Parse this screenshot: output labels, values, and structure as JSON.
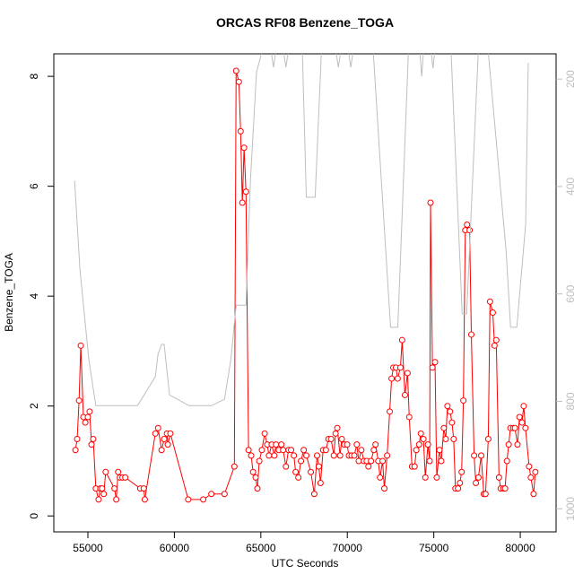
{
  "chart_data": {
    "type": "line",
    "title": "ORCAS RF08 Benzene_TOGA",
    "x_label": "UTC Seconds",
    "y_label": "Benzene_TOGA",
    "xlim": [
      53030,
      82070
    ],
    "xticks": [
      55000,
      60000,
      65000,
      70000,
      75000,
      80000
    ],
    "ylim": [
      -0.29,
      8.41
    ],
    "yticks": [
      0,
      2,
      4,
      6,
      8
    ],
    "y2lim": [
      1043,
      153
    ],
    "y2ticks": [
      200,
      400,
      600,
      800,
      1000
    ],
    "y2_color": "#bebebe",
    "series": [
      {
        "color": "#ff0000",
        "markers": true,
        "x": [
          54280,
          54380,
          54490,
          54590,
          54740,
          54850,
          55000,
          55100,
          55210,
          55310,
          55460,
          55620,
          55720,
          55820,
          55920,
          56030,
          56540,
          56640,
          56750,
          56850,
          57000,
          57160,
          58030,
          58230,
          58290,
          58900,
          59060,
          59260,
          59410,
          59570,
          59620,
          59770,
          60800,
          61670,
          62140,
          62900,
          63470,
          63570,
          63730,
          63830,
          63930,
          64030,
          64140,
          64290,
          64440,
          64550,
          64700,
          64800,
          64910,
          65060,
          65220,
          65370,
          65470,
          65630,
          65780,
          65880,
          66040,
          66190,
          66290,
          66450,
          66600,
          66750,
          66910,
          67010,
          67170,
          67320,
          67480,
          67630,
          67890,
          68090,
          68250,
          68350,
          68450,
          68600,
          68760,
          68910,
          69060,
          69220,
          69320,
          69420,
          69580,
          69680,
          69830,
          69990,
          70090,
          70250,
          70400,
          70550,
          70660,
          70810,
          70960,
          71120,
          71220,
          71370,
          71530,
          71630,
          71790,
          71890,
          72040,
          72140,
          72300,
          72450,
          72560,
          72660,
          72810,
          72910,
          73070,
          73170,
          73330,
          73480,
          73580,
          73740,
          73890,
          73990,
          74150,
          74250,
          74400,
          74510,
          74660,
          74760,
          74810,
          74920,
          75070,
          75170,
          75330,
          75430,
          75580,
          75690,
          75790,
          75940,
          76050,
          76150,
          76250,
          76400,
          76510,
          76610,
          76710,
          76820,
          76920,
          77070,
          77170,
          77330,
          77430,
          77580,
          77740,
          77890,
          77990,
          78150,
          78250,
          78410,
          78510,
          78610,
          78770,
          78870,
          79020,
          79120,
          79230,
          79330,
          79430,
          79590,
          79690,
          79840,
          79950,
          80100,
          80200,
          80300,
          80510,
          80610,
          80770,
          80870
        ],
        "values": [
          1.2,
          1.4,
          2.1,
          3.1,
          1.8,
          1.7,
          1.8,
          1.9,
          1.3,
          1.4,
          0.5,
          0.3,
          0.5,
          0.5,
          0.4,
          0.8,
          0.5,
          0.3,
          0.8,
          0.7,
          0.7,
          0.7,
          0.5,
          0.5,
          0.3,
          1.5,
          1.6,
          1.2,
          1.4,
          1.5,
          1.3,
          1.5,
          0.3,
          0.3,
          0.4,
          0.4,
          0.9,
          8.1,
          7.9,
          7.0,
          5.7,
          6.7,
          5.9,
          1.2,
          1.1,
          0.8,
          0.7,
          0.5,
          1.0,
          1.2,
          1.5,
          1.3,
          1.1,
          1.3,
          1.1,
          1.3,
          1.2,
          1.3,
          1.2,
          0.9,
          1.2,
          1.2,
          1.1,
          0.8,
          0.7,
          1.0,
          1.2,
          1.1,
          0.8,
          0.4,
          1.1,
          0.9,
          0.6,
          1.2,
          1.2,
          1.4,
          1.4,
          1.1,
          1.5,
          1.6,
          1.1,
          1.4,
          1.3,
          1.3,
          1.1,
          1.1,
          1.1,
          1.3,
          1.0,
          1.2,
          1.0,
          1.0,
          0.9,
          1.0,
          1.2,
          1.3,
          1.0,
          0.7,
          1.0,
          0.5,
          1.1,
          1.9,
          2.5,
          2.7,
          2.7,
          2.5,
          2.7,
          3.2,
          2.2,
          2.6,
          1.8,
          0.9,
          0.9,
          1.2,
          1.3,
          1.5,
          1.4,
          0.7,
          1.3,
          1.0,
          5.7,
          2.7,
          2.8,
          0.7,
          1.2,
          1.0,
          1.6,
          1.4,
          2.0,
          1.9,
          1.7,
          1.4,
          0.5,
          0.5,
          0.6,
          0.8,
          2.1,
          5.2,
          5.3,
          5.2,
          3.3,
          1.1,
          0.6,
          0.7,
          1.1,
          0.4,
          0.4,
          1.4,
          3.9,
          3.7,
          3.1,
          3.2,
          0.7,
          0.5,
          0.5,
          0.5,
          1.0,
          1.3,
          1.6,
          1.6,
          1.6,
          1.3,
          1.8,
          1.7,
          2.0,
          1.6,
          0.9,
          0.7,
          0.4,
          0.8
        ]
      },
      {
        "color": "#bebebe",
        "axis": "y2",
        "markers": false,
        "x": [
          54230,
          54540,
          55050,
          55460,
          57870,
          58900,
          59050,
          59260,
          59410,
          59720,
          60850,
          62140,
          62900,
          63270,
          63570,
          63680,
          64140,
          64400,
          64750,
          65060,
          65600,
          65730,
          65860,
          66320,
          66450,
          66580,
          67400,
          67630,
          68140,
          68500,
          69350,
          69480,
          69610,
          70070,
          70200,
          70330,
          71500,
          72500,
          72920,
          73530,
          74200,
          74300,
          74400,
          74850,
          74950,
          75050,
          76000,
          76640,
          76900,
          77570,
          78150,
          79180,
          79440,
          79800,
          80310,
          80460
        ],
        "values": [
          389,
          554,
          721,
          808,
          808,
          754,
          713,
          694,
          694,
          788,
          808,
          808,
          796,
          721,
          621,
          621,
          621,
          387,
          187,
          150,
          150,
          178,
          150,
          150,
          178,
          150,
          150,
          420,
          420,
          150,
          150,
          178,
          150,
          150,
          178,
          150,
          150,
          662,
          662,
          150,
          150,
          195,
          150,
          150,
          180,
          150,
          150,
          637,
          637,
          150,
          150,
          520,
          662,
          662,
          470,
          170
        ]
      }
    ]
  }
}
